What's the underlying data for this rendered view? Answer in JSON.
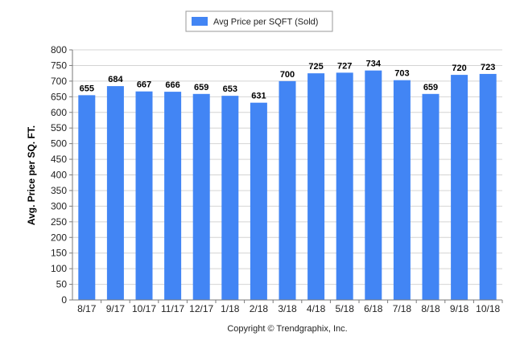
{
  "chart_data": {
    "type": "bar",
    "categories": [
      "8/17",
      "9/17",
      "10/17",
      "11/17",
      "12/17",
      "1/18",
      "2/18",
      "3/18",
      "4/18",
      "5/18",
      "6/18",
      "7/18",
      "8/18",
      "9/18",
      "10/18"
    ],
    "series": [
      {
        "name": "Avg Price per SQFT (Sold)",
        "values": [
          655,
          684,
          667,
          666,
          659,
          653,
          631,
          700,
          725,
          727,
          734,
          703,
          659,
          720,
          723
        ],
        "color": "#4285f4"
      }
    ],
    "ylabel": "Avg. Price per SQ. FT.",
    "xlabel": "",
    "ylim": [
      0,
      800
    ],
    "yticks": [
      0,
      50,
      100,
      150,
      200,
      250,
      300,
      350,
      400,
      450,
      500,
      550,
      600,
      650,
      700,
      750,
      800
    ],
    "grid": true,
    "legend_position": "top-center",
    "data_labels": true
  },
  "footer": {
    "copyright": "Copyright © Trendgraphix, Inc."
  }
}
